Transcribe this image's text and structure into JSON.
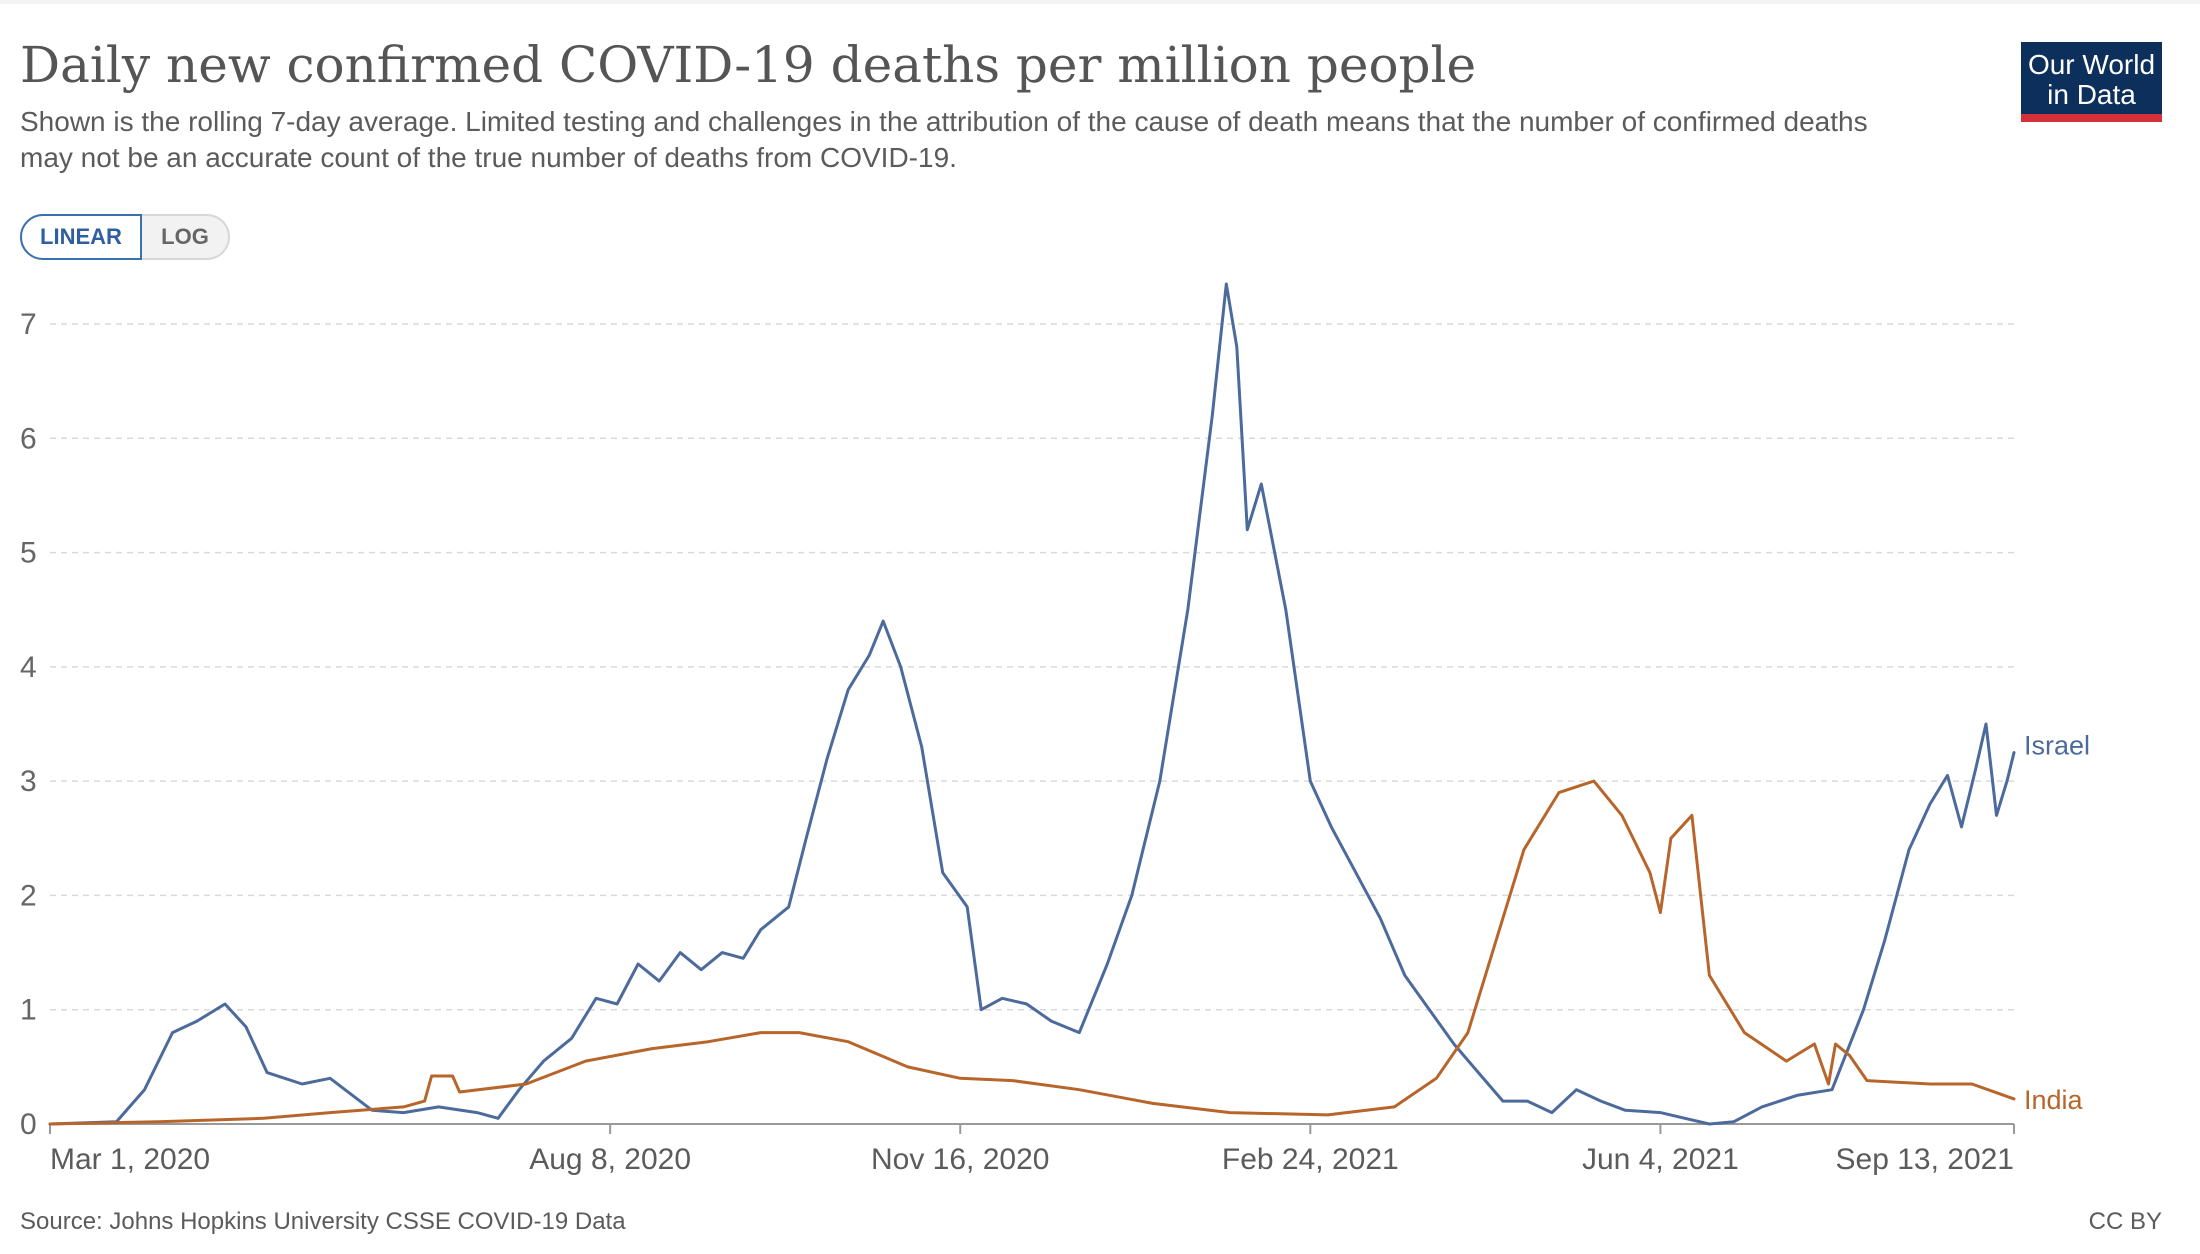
{
  "header": {
    "title": "Daily new confirmed COVID-19 deaths per million people",
    "subtitle": "Shown is the rolling 7-day average. Limited testing and challenges in the attribution of the cause of death means that the number of confirmed deaths may not be an accurate count of the true number of deaths from COVID-19.",
    "logo_line1": "Our World",
    "logo_line2": "in Data"
  },
  "controls": {
    "linear_label": "LINEAR",
    "log_label": "LOG",
    "selected": "LINEAR"
  },
  "footer": {
    "source": "Source: Johns Hopkins University CSSE COVID-19 Data",
    "license": "CC BY"
  },
  "colors": {
    "israel": "#4c6a9c",
    "india": "#b8652b",
    "grid": "#d9d9d9",
    "axis": "#666666"
  },
  "chart_data": {
    "type": "line",
    "title": "Daily new confirmed COVID-19 deaths per million people",
    "xlabel": "",
    "ylabel": "",
    "x_range": [
      "2020-03-01",
      "2021-09-13"
    ],
    "ylim": [
      0,
      7
    ],
    "y_ticks": [
      0,
      1,
      2,
      3,
      4,
      5,
      6,
      7
    ],
    "x_ticks": [
      {
        "date": "2020-03-01",
        "label": "Mar 1, 2020"
      },
      {
        "date": "2020-08-08",
        "label": "Aug 8, 2020"
      },
      {
        "date": "2020-11-16",
        "label": "Nov 16, 2020"
      },
      {
        "date": "2021-02-24",
        "label": "Feb 24, 2021"
      },
      {
        "date": "2021-06-04",
        "label": "Jun 4, 2021"
      },
      {
        "date": "2021-09-13",
        "label": "Sep 13, 2021"
      }
    ],
    "grid": "horizontal-dashed",
    "legend": "line-end-labels",
    "series": [
      {
        "name": "Israel",
        "points": [
          [
            "2020-03-01",
            0
          ],
          [
            "2020-03-20",
            0.02
          ],
          [
            "2020-03-28",
            0.3
          ],
          [
            "2020-04-05",
            0.8
          ],
          [
            "2020-04-12",
            0.9
          ],
          [
            "2020-04-20",
            1.05
          ],
          [
            "2020-04-26",
            0.85
          ],
          [
            "2020-05-02",
            0.45
          ],
          [
            "2020-05-12",
            0.35
          ],
          [
            "2020-05-20",
            0.4
          ],
          [
            "2020-06-01",
            0.12
          ],
          [
            "2020-06-10",
            0.1
          ],
          [
            "2020-06-20",
            0.15
          ],
          [
            "2020-07-01",
            0.1
          ],
          [
            "2020-07-07",
            0.05
          ],
          [
            "2020-07-13",
            0.3
          ],
          [
            "2020-07-20",
            0.55
          ],
          [
            "2020-07-28",
            0.75
          ],
          [
            "2020-08-04",
            1.1
          ],
          [
            "2020-08-10",
            1.05
          ],
          [
            "2020-08-16",
            1.4
          ],
          [
            "2020-08-22",
            1.25
          ],
          [
            "2020-08-28",
            1.5
          ],
          [
            "2020-09-03",
            1.35
          ],
          [
            "2020-09-09",
            1.5
          ],
          [
            "2020-09-15",
            1.45
          ],
          [
            "2020-09-20",
            1.7
          ],
          [
            "2020-09-28",
            1.9
          ],
          [
            "2020-10-03",
            2.5
          ],
          [
            "2020-10-09",
            3.2
          ],
          [
            "2020-10-15",
            3.8
          ],
          [
            "2020-10-21",
            4.1
          ],
          [
            "2020-10-25",
            4.4
          ],
          [
            "2020-10-30",
            4.0
          ],
          [
            "2020-11-05",
            3.3
          ],
          [
            "2020-11-11",
            2.2
          ],
          [
            "2020-11-18",
            1.9
          ],
          [
            "2020-11-22",
            1.0
          ],
          [
            "2020-11-28",
            1.1
          ],
          [
            "2020-12-05",
            1.05
          ],
          [
            "2020-12-12",
            0.9
          ],
          [
            "2020-12-20",
            0.8
          ],
          [
            "2020-12-28",
            1.4
          ],
          [
            "2021-01-04",
            2.0
          ],
          [
            "2021-01-12",
            3.0
          ],
          [
            "2021-01-20",
            4.5
          ],
          [
            "2021-01-27",
            6.2
          ],
          [
            "2021-01-31",
            7.35
          ],
          [
            "2021-02-03",
            6.8
          ],
          [
            "2021-02-06",
            5.2
          ],
          [
            "2021-02-10",
            5.6
          ],
          [
            "2021-02-17",
            4.5
          ],
          [
            "2021-02-24",
            3.0
          ],
          [
            "2021-03-02",
            2.6
          ],
          [
            "2021-03-09",
            2.2
          ],
          [
            "2021-03-16",
            1.8
          ],
          [
            "2021-03-23",
            1.3
          ],
          [
            "2021-03-30",
            1.0
          ],
          [
            "2021-04-06",
            0.7
          ],
          [
            "2021-04-13",
            0.45
          ],
          [
            "2021-04-20",
            0.2
          ],
          [
            "2021-04-27",
            0.2
          ],
          [
            "2021-05-04",
            0.1
          ],
          [
            "2021-05-11",
            0.3
          ],
          [
            "2021-05-18",
            0.2
          ],
          [
            "2021-05-25",
            0.12
          ],
          [
            "2021-06-04",
            0.1
          ],
          [
            "2021-06-11",
            0.05
          ],
          [
            "2021-06-18",
            0.0
          ],
          [
            "2021-06-25",
            0.02
          ],
          [
            "2021-07-03",
            0.15
          ],
          [
            "2021-07-13",
            0.25
          ],
          [
            "2021-07-23",
            0.3
          ],
          [
            "2021-08-01",
            1.0
          ],
          [
            "2021-08-07",
            1.6
          ],
          [
            "2021-08-14",
            2.4
          ],
          [
            "2021-08-20",
            2.8
          ],
          [
            "2021-08-25",
            3.05
          ],
          [
            "2021-08-29",
            2.6
          ],
          [
            "2021-09-02",
            3.1
          ],
          [
            "2021-09-05",
            3.5
          ],
          [
            "2021-09-08",
            2.7
          ],
          [
            "2021-09-11",
            3.0
          ],
          [
            "2021-09-13",
            3.25
          ]
        ]
      },
      {
        "name": "India",
        "points": [
          [
            "2020-03-01",
            0
          ],
          [
            "2020-04-01",
            0.02
          ],
          [
            "2020-05-01",
            0.05
          ],
          [
            "2020-05-20",
            0.1
          ],
          [
            "2020-06-10",
            0.15
          ],
          [
            "2020-06-16",
            0.2
          ],
          [
            "2020-06-18",
            0.42
          ],
          [
            "2020-06-24",
            0.42
          ],
          [
            "2020-06-26",
            0.28
          ],
          [
            "2020-07-15",
            0.35
          ],
          [
            "2020-08-01",
            0.55
          ],
          [
            "2020-08-20",
            0.66
          ],
          [
            "2020-09-05",
            0.72
          ],
          [
            "2020-09-20",
            0.8
          ],
          [
            "2020-10-01",
            0.8
          ],
          [
            "2020-10-15",
            0.72
          ],
          [
            "2020-11-01",
            0.5
          ],
          [
            "2020-11-16",
            0.4
          ],
          [
            "2020-12-01",
            0.38
          ],
          [
            "2020-12-20",
            0.3
          ],
          [
            "2021-01-10",
            0.18
          ],
          [
            "2021-02-01",
            0.1
          ],
          [
            "2021-03-01",
            0.08
          ],
          [
            "2021-03-20",
            0.15
          ],
          [
            "2021-04-01",
            0.4
          ],
          [
            "2021-04-10",
            0.8
          ],
          [
            "2021-04-18",
            1.6
          ],
          [
            "2021-04-26",
            2.4
          ],
          [
            "2021-05-06",
            2.9
          ],
          [
            "2021-05-16",
            3.0
          ],
          [
            "2021-05-24",
            2.7
          ],
          [
            "2021-06-01",
            2.2
          ],
          [
            "2021-06-04",
            1.85
          ],
          [
            "2021-06-07",
            2.5
          ],
          [
            "2021-06-13",
            2.7
          ],
          [
            "2021-06-18",
            1.3
          ],
          [
            "2021-06-28",
            0.8
          ],
          [
            "2021-07-10",
            0.55
          ],
          [
            "2021-07-18",
            0.7
          ],
          [
            "2021-07-22",
            0.35
          ],
          [
            "2021-07-24",
            0.7
          ],
          [
            "2021-07-28",
            0.6
          ],
          [
            "2021-08-02",
            0.38
          ],
          [
            "2021-08-20",
            0.35
          ],
          [
            "2021-09-01",
            0.35
          ],
          [
            "2021-09-13",
            0.22
          ]
        ]
      }
    ]
  }
}
